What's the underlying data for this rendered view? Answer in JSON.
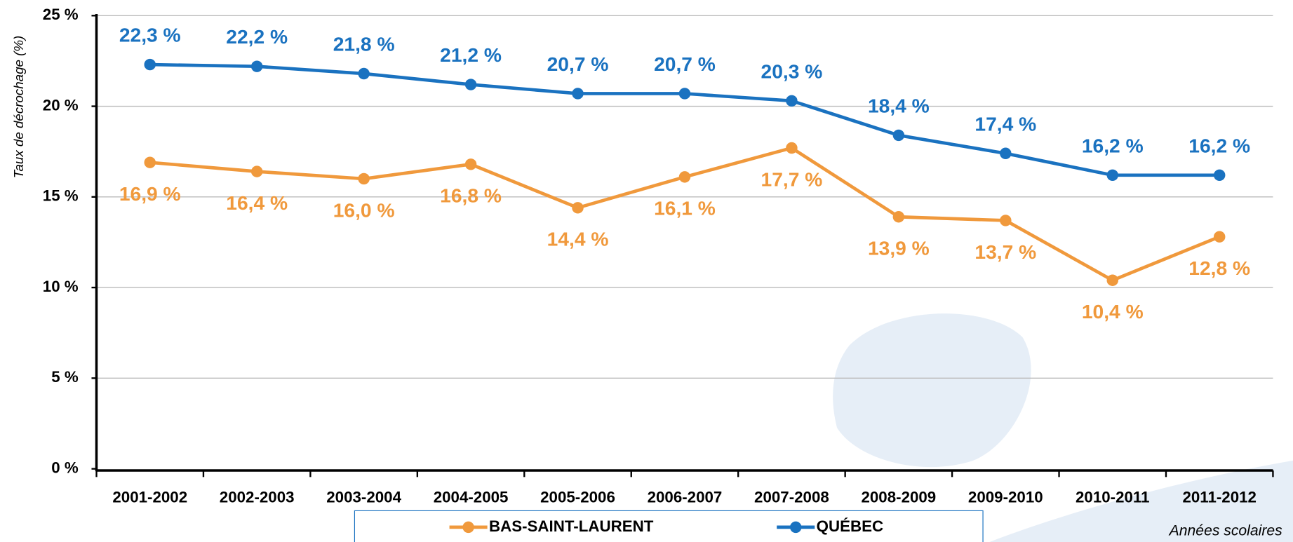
{
  "chart_data": {
    "type": "line",
    "y_label": "Taux de décrochage (%)",
    "x_label": "Années scolaires",
    "categories": [
      "2001-2002",
      "2002-2003",
      "2003-2004",
      "2004-2005",
      "2005-2006",
      "2006-2007",
      "2007-2008",
      "2008-2009",
      "2009-2010",
      "2010-2011",
      "2011-2012"
    ],
    "series": [
      {
        "name": "BAS-SAINT-LAURENT",
        "color": "#f0993c",
        "values": [
          16.9,
          16.4,
          16.0,
          16.8,
          14.4,
          16.1,
          17.7,
          13.9,
          13.7,
          10.4,
          12.8
        ],
        "value_labels": [
          "16,9 %",
          "16,4 %",
          "16,0 %",
          "16,8 %",
          "14,4 %",
          "16,1 %",
          "17,7 %",
          "13,9 %",
          "13,7 %",
          "10,4 %",
          "12,8 %"
        ]
      },
      {
        "name": "QUÉBEC",
        "color": "#1a72c0",
        "values": [
          22.3,
          22.2,
          21.8,
          21.2,
          20.7,
          20.7,
          20.3,
          18.4,
          17.4,
          16.2,
          16.2
        ],
        "value_labels": [
          "22,3 %",
          "22,2 %",
          "21,8 %",
          "21,2 %",
          "20,7 %",
          "20,7 %",
          "20,3 %",
          "18,4 %",
          "17,4 %",
          "16,2 %",
          "16,2 %"
        ]
      }
    ],
    "ylim": [
      0,
      25
    ],
    "yticks": [
      {
        "value": 0,
        "label": "0 %"
      },
      {
        "value": 5,
        "label": "5 %"
      },
      {
        "value": 10,
        "label": "10 %"
      },
      {
        "value": 15,
        "label": "15 %"
      },
      {
        "value": 20,
        "label": "20 %"
      },
      {
        "value": 25,
        "label": "25 %"
      }
    ],
    "grid": true
  }
}
